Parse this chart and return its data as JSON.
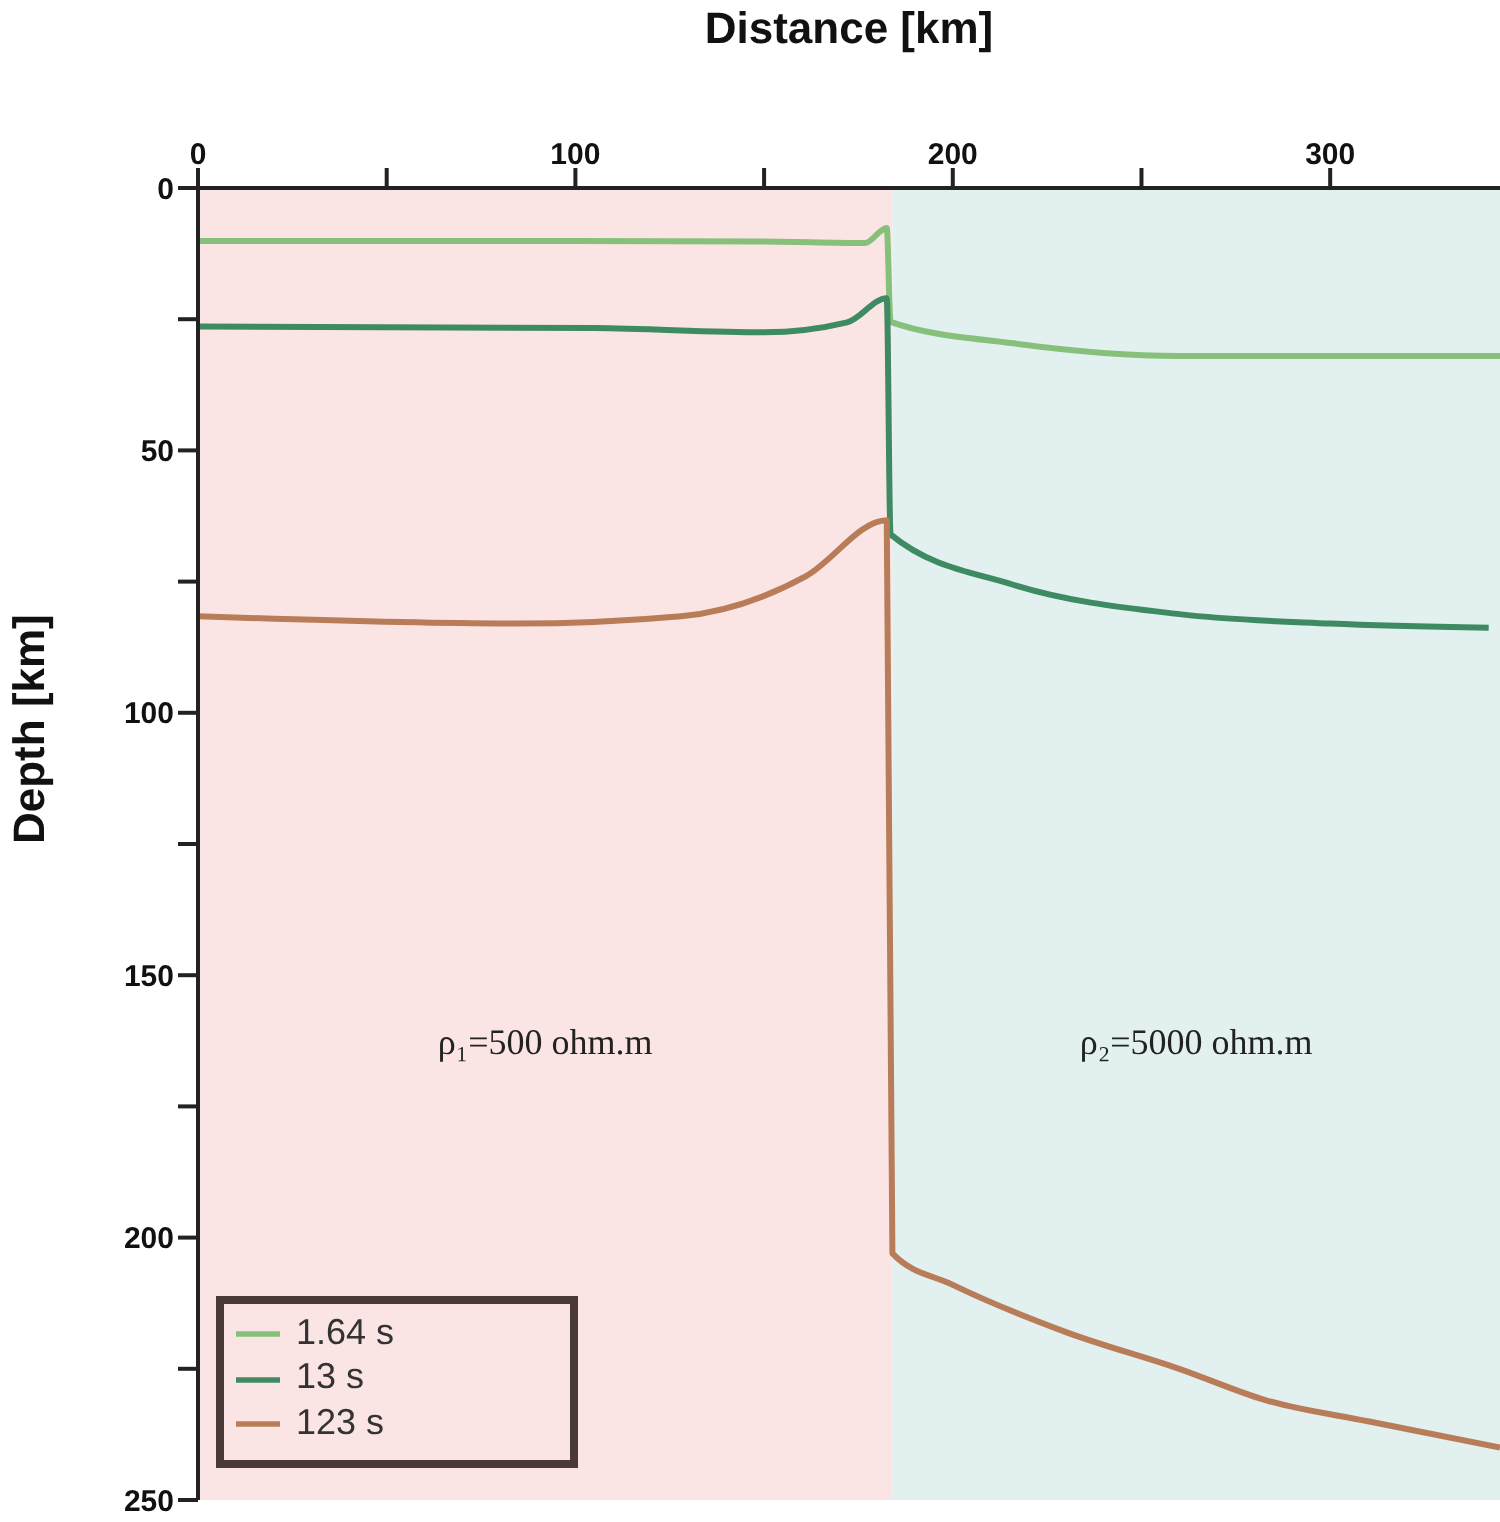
{
  "chart_data": {
    "type": "line",
    "xlabel": "Distance [km]",
    "ylabel": "Depth [km]",
    "xlim": [
      0,
      345
    ],
    "xticks": [
      0,
      {
        "value": 50,
        "label": null
      },
      100,
      {
        "value": 150,
        "label": null
      },
      200,
      {
        "value": 250,
        "label": null
      },
      300
    ],
    "ylim": [
      250,
      0
    ],
    "yticks": [
      0,
      {
        "value": 25,
        "label": null
      },
      50,
      {
        "value": 75,
        "label": null
      },
      100,
      {
        "value": 125,
        "label": null
      },
      150,
      {
        "value": 175,
        "label": null
      },
      200,
      {
        "value": 225,
        "label": null
      },
      250
    ],
    "legend": "bottom left",
    "line_style": "solid",
    "marker": "none",
    "bands": [
      {
        "axis": "x",
        "from": 0,
        "to": 184,
        "color": "#fbe5e4",
        "label": "ρ₁=500 ohm.m"
      },
      {
        "axis": "x",
        "from": 184,
        "to": 345,
        "color": "#e2f0f0",
        "label": "ρ₂=5000 ohm.m"
      }
    ],
    "series": [
      {
        "name": "1.64 s",
        "color": "#86c07a",
        "x": [
          0,
          100,
          150,
          176.7,
          182.5,
          183.5,
          216,
          260,
          345
        ],
        "values": [
          10.1,
          10.1,
          10.2,
          10.5,
          7.6,
          25.5,
          29.6,
          32,
          32
        ]
      },
      {
        "name": "13 s",
        "color": "#3e8a62",
        "x": [
          0,
          105,
          150,
          172,
          182.5,
          183.5,
          216,
          260,
          300,
          342
        ],
        "values": [
          26.4,
          26.7,
          27.5,
          25.6,
          21,
          66,
          75.6,
          81.2,
          83,
          83.8
        ]
      },
      {
        "name": "123 s",
        "color": "#b97c58",
        "x": [
          0,
          84,
          128,
          161,
          182.5,
          184,
          200,
          230,
          260,
          283,
          310,
          345
        ],
        "values": [
          81.6,
          83,
          81.6,
          74,
          63.3,
          203,
          209,
          218,
          225,
          231,
          235,
          240
        ]
      }
    ]
  }
}
